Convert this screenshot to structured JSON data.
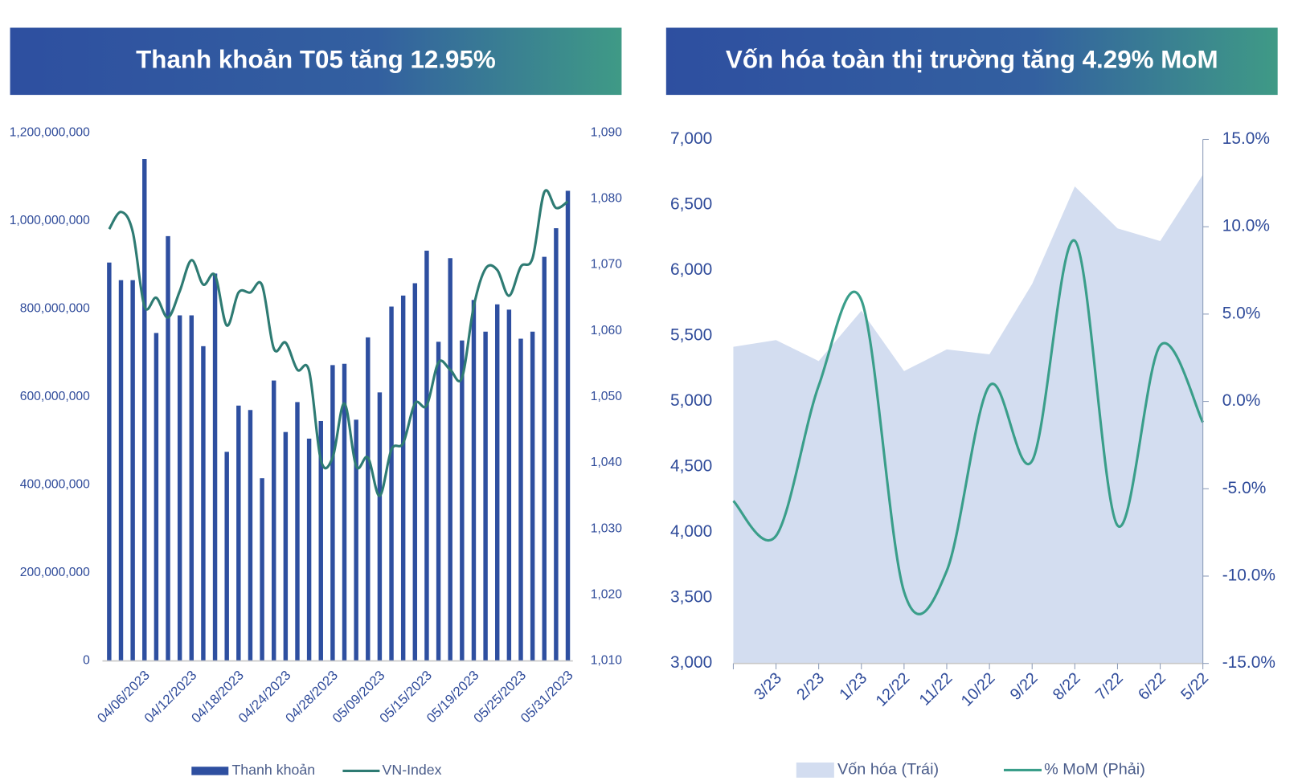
{
  "chart_data": [
    {
      "type": "bar",
      "title": "Thanh khoản T05 tăng 12.95%",
      "categories": [
        null,
        null,
        null,
        "04/06/2023",
        null,
        null,
        null,
        "04/12/2023",
        null,
        null,
        null,
        "04/18/2023",
        null,
        null,
        null,
        "04/24/2023",
        null,
        null,
        null,
        "04/28/2023",
        null,
        null,
        null,
        "05/09/2023",
        null,
        null,
        null,
        "05/15/2023",
        null,
        null,
        null,
        "05/19/2023",
        null,
        null,
        null,
        "05/25/2023",
        null,
        null,
        null,
        "05/31/2023"
      ],
      "series": [
        {
          "name": "Thanh khoản",
          "type": "bar",
          "color": "#2e4fa0",
          "values": [
            905000000,
            865000000,
            865000000,
            1140000000,
            745000000,
            965000000,
            785000000,
            785000000,
            715000000,
            880000000,
            475000000,
            580000000,
            570000000,
            415000000,
            637000000,
            520000000,
            588000000,
            505000000,
            545000000,
            672000000,
            675000000,
            548000000,
            735000000,
            610000000,
            805000000,
            830000000,
            858000000,
            932000000,
            725000000,
            915000000,
            728000000,
            820000000,
            748000000,
            810000000,
            798000000,
            732000000,
            748000000,
            918000000,
            983000000,
            1068000000
          ]
        },
        {
          "name": "VN-Index",
          "type": "line",
          "axis": "y2",
          "color": "#2e7b73",
          "values": [
            1075.4,
            1078,
            1075,
            1063.7,
            1065,
            1062,
            1066,
            1070.7,
            1067,
            1068.4,
            1060.8,
            1065.8,
            1065.8,
            1066.9,
            1057.3,
            1058.2,
            1054.1,
            1053.9,
            1040.4,
            1040.8,
            1049,
            1039.5,
            1040.8,
            1035,
            1042,
            1043,
            1049,
            1048.7,
            1055.2,
            1054.1,
            1052.9,
            1063.7,
            1069.4,
            1069.2,
            1065.3,
            1069.7,
            1071,
            1081,
            1078.6,
            1079.6
          ]
        }
      ],
      "ylim": [
        0,
        1200000000
      ],
      "yticks": [
        0,
        {
          "value": 200000000,
          "label": "200,000,000"
        },
        {
          "value": 400000000,
          "label": "400,000,000"
        },
        {
          "value": 600000000,
          "label": "600,000,000"
        },
        {
          "value": 800000000,
          "label": "800,000,000"
        },
        {
          "value": 1000000000,
          "label": "1,000,000,000"
        },
        {
          "value": 1200000000,
          "label": "1,200,000,000"
        }
      ],
      "y2lim": [
        1010,
        1090
      ],
      "y2ticks": [
        {
          "value": 1010,
          "label": "1,010"
        },
        {
          "value": 1020,
          "label": "1,020"
        },
        {
          "value": 1030,
          "label": "1,030"
        },
        {
          "value": 1040,
          "label": "1,040"
        },
        {
          "value": 1050,
          "label": "1,050"
        },
        {
          "value": 1060,
          "label": "1,060"
        },
        {
          "value": 1070,
          "label": "1,070"
        },
        {
          "value": 1080,
          "label": "1,080"
        },
        {
          "value": 1090,
          "label": "1,090"
        }
      ],
      "legend": "bottom"
    },
    {
      "type": "area",
      "title": "Vốn hóa toàn thị trường tăng 4.29% MoM",
      "categories": [
        null,
        "3/23",
        "2/23",
        "1/23",
        "12/22",
        "11/22",
        "10/22",
        "9/22",
        "8/22",
        "7/22",
        "6/22",
        "5/22"
      ],
      "series": [
        {
          "name": "Vốn hóa (Trái)",
          "type": "area",
          "color": "#d3ddf0",
          "values": [
            5417,
            5468,
            5308,
            5692,
            5231,
            5397,
            5359,
            5897,
            6641,
            6321,
            6224,
            6731
          ]
        },
        {
          "name": "% MoM (Phải)",
          "type": "line",
          "axis": "y2",
          "color": "#3a9e8a",
          "values": [
            -5.7,
            -7.7,
            0.9,
            5.8,
            -10.9,
            -9.7,
            0.9,
            -3.4,
            9.2,
            -7.1,
            3.2,
            -1.2
          ]
        }
      ],
      "ylim": [
        3000,
        7000
      ],
      "yticks": [
        {
          "value": 3000,
          "label": "3,000"
        },
        {
          "value": 3500,
          "label": "3,500"
        },
        {
          "value": 4000,
          "label": "4,000"
        },
        {
          "value": 4500,
          "label": "4,500"
        },
        {
          "value": 5000,
          "label": "5,000"
        },
        {
          "value": 5500,
          "label": "5,500"
        },
        {
          "value": 6000,
          "label": "6,000"
        },
        {
          "value": 6500,
          "label": "6,500"
        },
        {
          "value": 7000,
          "label": "7,000"
        }
      ],
      "y2lim": [
        -15,
        15
      ],
      "y2ticks": [
        {
          "value": -15,
          "label": "-15.0%"
        },
        {
          "value": -10,
          "label": "-10.0%"
        },
        {
          "value": -5,
          "label": "-5.0%"
        },
        {
          "value": 0,
          "label": "0.0%"
        },
        {
          "value": 5,
          "label": "5.0%"
        },
        {
          "value": 10,
          "label": "10.0%"
        },
        {
          "value": 15,
          "label": "15.0%"
        }
      ],
      "legend": "bottom"
    }
  ]
}
